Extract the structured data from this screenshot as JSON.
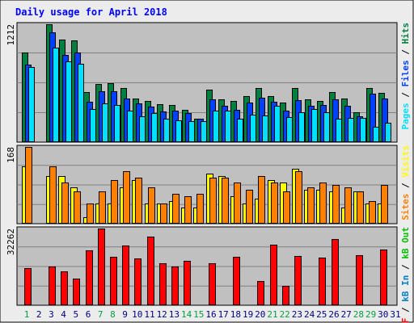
{
  "title": "Daily usage for April 2018",
  "colors": {
    "frame_bg": "#ececec",
    "plot_bg": "#c0c0c0",
    "border": "#000000",
    "grid": "#808080",
    "title": "#0000ff",
    "hits": "#008040",
    "files": "#0040ff",
    "pages": "#00e0ff",
    "visits": "#ffff00",
    "sites": "#ff8000",
    "kbin": "#0080c0",
    "kbout": "#00c000",
    "kbf": "#ff0000",
    "weekday_label": "#000080",
    "weekend_label": "#00a040"
  },
  "legends": {
    "top": [
      {
        "text": "Pages",
        "color": "#00e0ff"
      },
      {
        "text": " / ",
        "color": "#000000"
      },
      {
        "text": "Files",
        "color": "#0040ff"
      },
      {
        "text": " / ",
        "color": "#000000"
      },
      {
        "text": "Hits",
        "color": "#008040"
      }
    ],
    "mid": [
      {
        "text": "Sites",
        "color": "#ff8000"
      },
      {
        "text": " / ",
        "color": "#000000"
      },
      {
        "text": "Visits",
        "color": "#ffff00"
      }
    ],
    "bot": [
      {
        "text": "kB F",
        "color": "#ff0000"
      },
      {
        "text": " / ",
        "color": "#000000"
      },
      {
        "text": "kB In",
        "color": "#0080c0"
      },
      {
        "text": " / ",
        "color": "#000000"
      },
      {
        "text": "kB Out",
        "color": "#00c000"
      }
    ]
  },
  "chart_data": {
    "type": "bar",
    "title": "Daily usage for April 2018",
    "days": [
      "1",
      "2",
      "3",
      "4",
      "5",
      "6",
      "7",
      "8",
      "9",
      "10",
      "11",
      "12",
      "13",
      "14",
      "15",
      "16",
      "17",
      "18",
      "19",
      "20",
      "21",
      "22",
      "23",
      "24",
      "25",
      "26",
      "27",
      "28",
      "29",
      "30",
      "31"
    ],
    "weekend_days": [
      "1",
      "7",
      "8",
      "14",
      "15",
      "21",
      "22",
      "28",
      "29"
    ],
    "panels": [
      {
        "name": "hits-files-pages",
        "max_label": "1212",
        "ymax": 1212,
        "series": [
          {
            "name": "Hits",
            "color": "#008040",
            "values": [
              925,
              null,
              1212,
              1058,
              1045,
              515,
              600,
              605,
              555,
              450,
              425,
              390,
              385,
              330,
              240,
              540,
              440,
              420,
              475,
              555,
              475,
              405,
              555,
              440,
              420,
              515,
              445,
              305,
              555,
              510,
              null
            ]
          },
          {
            "name": "Files",
            "color": "#0040ff",
            "values": [
              795,
              null,
              1125,
              900,
              925,
              415,
              525,
              525,
              445,
              395,
              365,
              315,
              320,
              300,
              240,
              440,
              375,
              335,
              405,
              460,
              415,
              325,
              435,
              375,
              380,
              440,
              370,
              265,
              500,
              450,
              null
            ]
          },
          {
            "name": "Pages",
            "color": "#00e0ff",
            "values": [
              775,
              null,
              975,
              830,
              805,
              340,
              395,
              385,
              325,
              265,
              300,
              240,
              225,
              215,
              215,
              320,
              320,
              240,
              280,
              275,
              375,
              255,
              310,
              340,
              305,
              240,
              245,
              245,
              160,
              200,
              null
            ]
          }
        ]
      },
      {
        "name": "visits-sites",
        "max_label": "168",
        "ymax": 168,
        "series": [
          {
            "name": "Visits",
            "color": "#ffff00",
            "values": [
              125,
              null,
              105,
              105,
              80,
              15,
              45,
              45,
              80,
              95,
              45,
              45,
              50,
              35,
              35,
              110,
              105,
              60,
              45,
              55,
              95,
              90,
              120,
              75,
              75,
              70,
              35,
              70,
              45,
              45,
              null
            ]
          },
          {
            "name": "Sites",
            "color": "#ff8000",
            "values": [
              168,
              null,
              125,
              90,
              70,
              45,
              70,
              95,
              115,
              100,
              80,
              45,
              65,
              60,
              65,
              100,
              100,
              90,
              75,
              105,
              90,
              70,
              115,
              80,
              90,
              85,
              80,
              70,
              50,
              85,
              null
            ]
          }
        ]
      },
      {
        "name": "kbytes",
        "max_label": "32262",
        "ymax": 32262,
        "series": [
          {
            "name": "kB F",
            "color": "#ff0000",
            "values": [
              15700,
              null,
              16300,
              14100,
              11200,
              23000,
              32262,
              20500,
              25000,
              19800,
              28800,
              17700,
              16300,
              18700,
              null,
              17600,
              null,
              20500,
              null,
              10300,
              25500,
              8200,
              20600,
              null,
              20200,
              27700,
              null,
              20900,
              null,
              23600,
              null
            ]
          }
        ]
      }
    ]
  }
}
